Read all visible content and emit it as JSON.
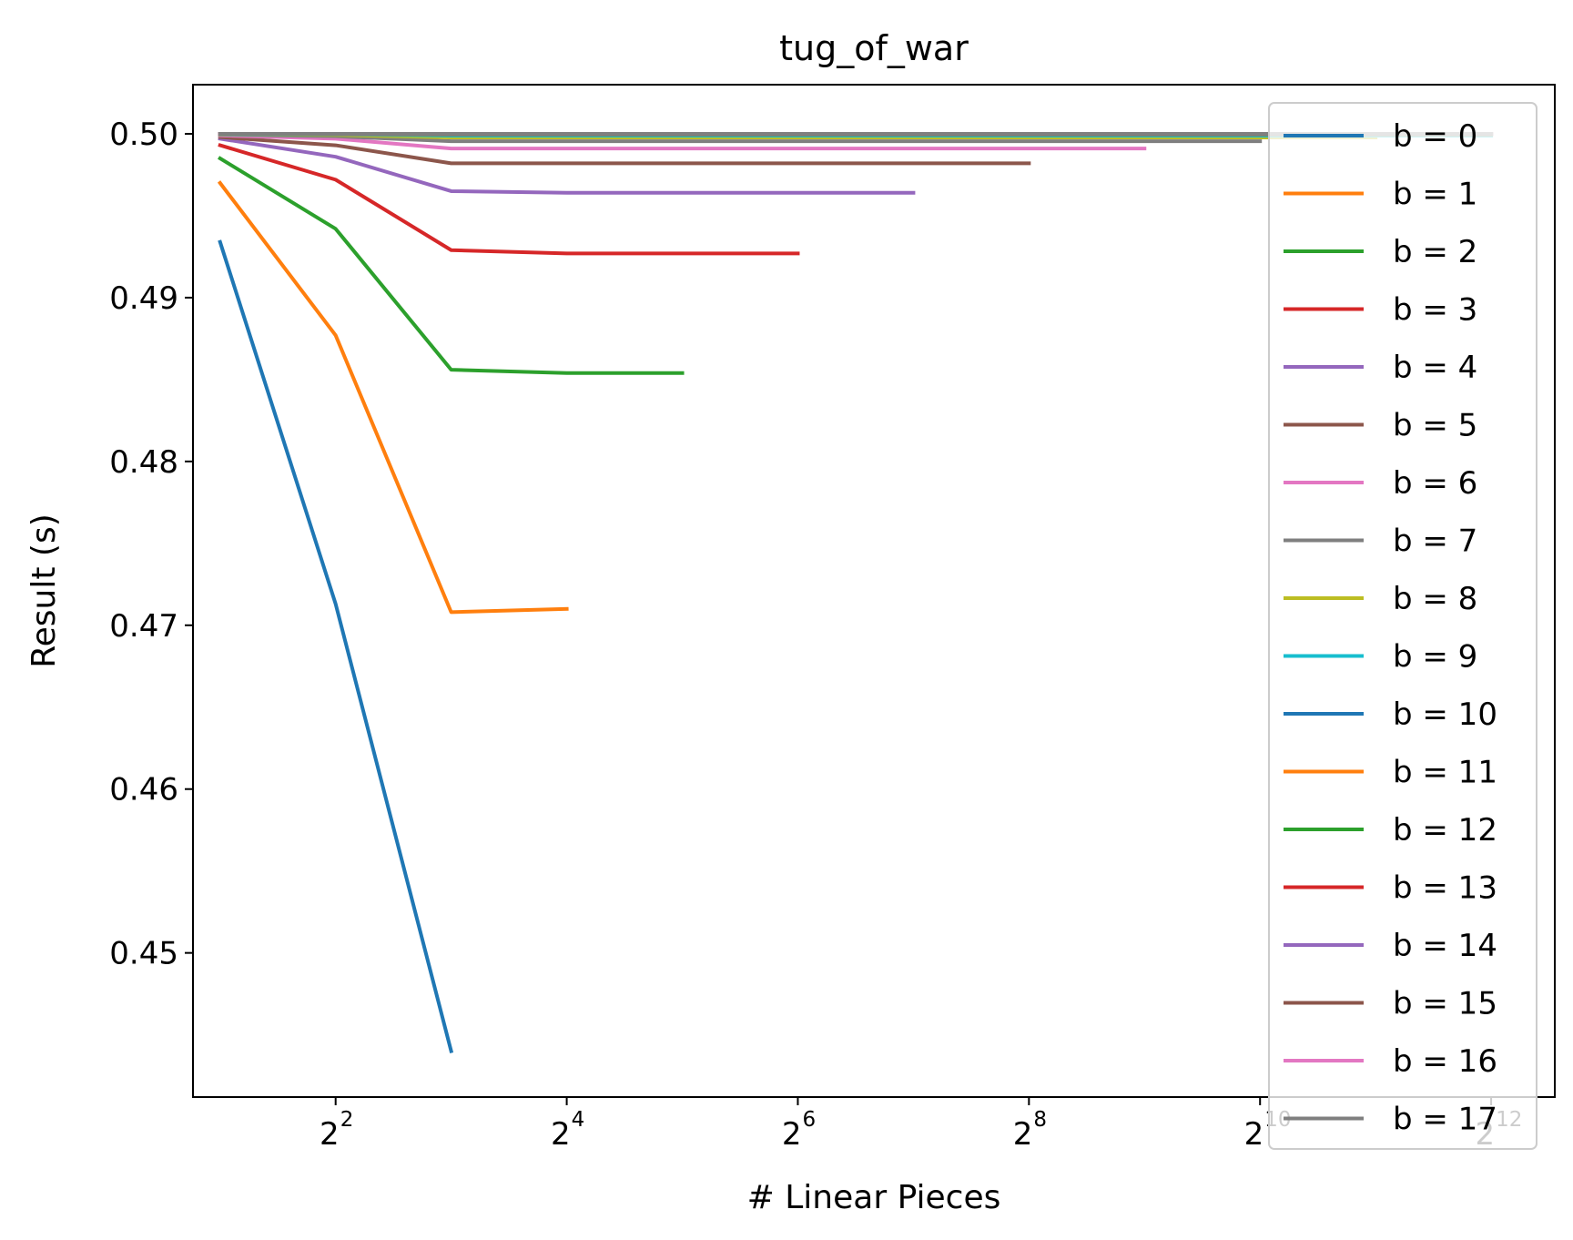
{
  "chart_data": {
    "type": "line",
    "title": "tug_of_war",
    "xlabel": "# Linear Pieces",
    "ylabel": "Result (s)",
    "xscale": "log2",
    "xlim": [
      1.7,
      6000
    ],
    "ylim": [
      0.4412,
      0.503
    ],
    "x_ticks": [
      4,
      16,
      64,
      256,
      1024,
      4096
    ],
    "x_tick_labels": [
      {
        "base": "2",
        "exp": "2"
      },
      {
        "base": "2",
        "exp": "4"
      },
      {
        "base": "2",
        "exp": "6"
      },
      {
        "base": "2",
        "exp": "8"
      },
      {
        "base": "2",
        "exp": "10"
      },
      {
        "base": "2",
        "exp": "12"
      }
    ],
    "y_ticks": [
      0.45,
      0.46,
      0.47,
      0.48,
      0.49,
      0.5
    ],
    "y_tick_labels": [
      "0.45",
      "0.46",
      "0.47",
      "0.48",
      "0.49",
      "0.50"
    ],
    "grid": false,
    "legend_position": "right",
    "series": [
      {
        "name": "b = 0",
        "color": "#1f77b4",
        "x": [
          2,
          4,
          8
        ],
        "y": [
          0.4934,
          0.4713,
          0.444
        ]
      },
      {
        "name": "b = 1",
        "color": "#ff7f0e",
        "x": [
          2,
          4,
          8,
          16
        ],
        "y": [
          0.497,
          0.4877,
          0.4708,
          0.471
        ]
      },
      {
        "name": "b = 2",
        "color": "#2ca02c",
        "x": [
          2,
          4,
          8,
          16,
          32
        ],
        "y": [
          0.4985,
          0.4942,
          0.4856,
          0.4854,
          0.4854
        ]
      },
      {
        "name": "b = 3",
        "color": "#d62728",
        "x": [
          2,
          4,
          8,
          16,
          32,
          64
        ],
        "y": [
          0.4993,
          0.4972,
          0.4929,
          0.4927,
          0.4927,
          0.4927
        ]
      },
      {
        "name": "b = 4",
        "color": "#9467bd",
        "x": [
          2,
          4,
          8,
          16,
          32,
          64,
          128
        ],
        "y": [
          0.4997,
          0.4986,
          0.4965,
          0.4964,
          0.4964,
          0.4964,
          0.4964
        ]
      },
      {
        "name": "b = 5",
        "color": "#8c564b",
        "x": [
          2,
          4,
          8,
          16,
          32,
          64,
          128,
          256
        ],
        "y": [
          0.4998,
          0.4993,
          0.4982,
          0.4982,
          0.4982,
          0.4982,
          0.4982,
          0.4982
        ]
      },
      {
        "name": "b = 6",
        "color": "#e377c2",
        "x": [
          2,
          4,
          8,
          16,
          32,
          64,
          128,
          256,
          512
        ],
        "y": [
          0.4999,
          0.4997,
          0.4991,
          0.4991,
          0.4991,
          0.4991,
          0.4991,
          0.4991,
          0.4991
        ]
      },
      {
        "name": "b = 7",
        "color": "#7f7f7f",
        "x": [
          2,
          4,
          8,
          16,
          32,
          64,
          128,
          256,
          512,
          1024
        ],
        "y": [
          0.49995,
          0.49985,
          0.49955,
          0.49955,
          0.49955,
          0.49955,
          0.49955,
          0.49955,
          0.49955,
          0.49955
        ]
      },
      {
        "name": "b = 8",
        "color": "#bcbd22",
        "x": [
          2,
          4,
          8,
          16,
          32,
          64,
          128,
          256,
          512,
          1024,
          2048
        ],
        "y": [
          0.49998,
          0.49993,
          0.49978,
          0.49978,
          0.49978,
          0.49978,
          0.49978,
          0.49978,
          0.49978,
          0.49978,
          0.49978
        ]
      },
      {
        "name": "b = 9",
        "color": "#17becf",
        "x": [
          2,
          4,
          8,
          16,
          32,
          64,
          128,
          256,
          512,
          1024,
          2048,
          4096
        ],
        "y": [
          0.49999,
          0.49997,
          0.49989,
          0.49989,
          0.49989,
          0.49989,
          0.49989,
          0.49989,
          0.49989,
          0.49989,
          0.49989,
          0.49989
        ]
      },
      {
        "name": "b = 10",
        "color": "#1f77b4",
        "x": [
          2,
          4,
          8,
          16,
          32,
          64,
          128,
          256,
          512,
          1024,
          2048,
          4096
        ],
        "y": [
          0.5,
          0.49998,
          0.49995,
          0.49995,
          0.49995,
          0.49995,
          0.49995,
          0.49995,
          0.49995,
          0.49995,
          0.49995,
          0.49995
        ]
      },
      {
        "name": "b = 11",
        "color": "#ff7f0e",
        "x": [
          2,
          4,
          8,
          16,
          32,
          64,
          128,
          256,
          512,
          1024,
          2048,
          4096
        ],
        "y": [
          0.5,
          0.49999,
          0.49997,
          0.49997,
          0.49997,
          0.49997,
          0.49997,
          0.49997,
          0.49997,
          0.49997,
          0.49997,
          0.49997
        ]
      },
      {
        "name": "b = 12",
        "color": "#2ca02c",
        "x": [
          2,
          4,
          8,
          16,
          32,
          64,
          128,
          256,
          512,
          1024,
          2048,
          4096
        ],
        "y": [
          0.5,
          0.5,
          0.49999,
          0.49999,
          0.49999,
          0.49999,
          0.49999,
          0.49999,
          0.49999,
          0.49999,
          0.49999,
          0.49999
        ]
      },
      {
        "name": "b = 13",
        "color": "#d62728",
        "x": [
          2,
          4,
          8,
          16,
          32,
          64,
          128,
          256,
          512,
          1024,
          2048,
          4096
        ],
        "y": [
          0.5,
          0.5,
          0.5,
          0.5,
          0.5,
          0.5,
          0.5,
          0.5,
          0.5,
          0.5,
          0.5,
          0.5
        ]
      },
      {
        "name": "b = 14",
        "color": "#9467bd",
        "x": [
          2,
          4,
          8,
          16,
          32,
          64,
          128,
          256,
          512,
          1024,
          2048,
          4096
        ],
        "y": [
          0.5,
          0.5,
          0.5,
          0.5,
          0.5,
          0.5,
          0.5,
          0.5,
          0.5,
          0.5,
          0.5,
          0.5
        ]
      },
      {
        "name": "b = 15",
        "color": "#8c564b",
        "x": [
          2,
          4,
          8,
          16,
          32,
          64,
          128,
          256,
          512,
          1024,
          2048,
          4096
        ],
        "y": [
          0.5,
          0.5,
          0.5,
          0.5,
          0.5,
          0.5,
          0.5,
          0.5,
          0.5,
          0.5,
          0.5,
          0.5
        ]
      },
      {
        "name": "b = 16",
        "color": "#e377c2",
        "x": [
          2,
          4,
          8,
          16,
          32,
          64,
          128,
          256,
          512,
          1024,
          2048,
          4096
        ],
        "y": [
          0.5,
          0.5,
          0.5,
          0.5,
          0.5,
          0.5,
          0.5,
          0.5,
          0.5,
          0.5,
          0.5,
          0.5
        ]
      },
      {
        "name": "b = 17",
        "color": "#7f7f7f",
        "x": [
          2,
          4,
          8,
          16,
          32,
          64,
          128,
          256,
          512,
          1024,
          2048,
          4096
        ],
        "y": [
          0.5,
          0.5,
          0.5,
          0.5,
          0.5,
          0.5,
          0.5,
          0.5,
          0.5,
          0.5,
          0.5,
          0.5
        ]
      }
    ]
  }
}
